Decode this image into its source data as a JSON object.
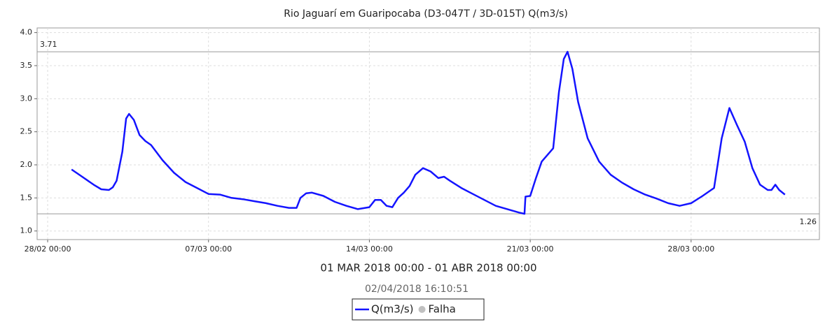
{
  "chart_data": {
    "type": "line",
    "title": "Rio Jaguarí em Guaripocaba (D3-047T / 3D-015T) Q(m3/s)",
    "subtitle": "01 MAR 2018 00:00 - 01 ABR 2018 00:00",
    "timestamp": "02/04/2018 16:10:51",
    "missing_label": "Falha",
    "missing_color": "#c0c0c0",
    "grid": true,
    "max_line": 3.71,
    "min_line": 1.26,
    "xlim": [
      "27/02 13:00",
      "02/04 14:00"
    ],
    "xticks": [
      "28/02 00:00",
      "07/03 00:00",
      "14/03 00:00",
      "21/03 00:00",
      "28/03 00:00"
    ],
    "ylim": [
      0.87,
      4.07
    ],
    "yticks": [
      {
        "value": 1,
        "label": "1.0"
      },
      {
        "value": 1.5,
        "label": "1.5"
      },
      {
        "value": 2,
        "label": "2.0"
      },
      {
        "value": 2.5,
        "label": "2.5"
      },
      {
        "value": 3,
        "label": "3.0"
      },
      {
        "value": 3.5,
        "label": "3.5"
      },
      {
        "value": 4,
        "label": "4.0"
      }
    ],
    "x": [
      "01/03 01:00",
      "01/03 12:00",
      "02/03 00:00",
      "02/03 08:00",
      "02/03 16:00",
      "02/03 20:00",
      "03/03 00:00",
      "03/03 06:00",
      "03/03 10:00",
      "03/03 13:00",
      "03/03 18:00",
      "04/03 00:00",
      "04/03 06:00",
      "04/03 12:00",
      "05/03 00:00",
      "05/03 12:00",
      "06/03 00:00",
      "06/03 12:00",
      "07/03 00:00",
      "07/03 12:00",
      "08/03 00:00",
      "08/03 12:00",
      "09/03 00:00",
      "09/03 12:00",
      "10/03 00:00",
      "10/03 12:00",
      "10/03 20:00",
      "11/03 00:00",
      "11/03 06:00",
      "11/03 12:00",
      "12/03 00:00",
      "12/03 12:00",
      "13/03 00:00",
      "13/03 12:00",
      "14/03 00:00",
      "14/03 06:00",
      "14/03 12:00",
      "14/03 18:00",
      "15/03 00:00",
      "15/03 06:00",
      "15/03 12:00",
      "15/03 18:00",
      "16/03 00:00",
      "16/03 08:00",
      "16/03 16:00",
      "17/03 00:00",
      "17/03 06:00",
      "17/03 12:00",
      "18/03 00:00",
      "18/03 12:00",
      "19/03 00:00",
      "19/03 12:00",
      "20/03 00:00",
      "20/03 12:00",
      "20/03 18:00",
      "20/03 19:00",
      "21/03 00:00",
      "21/03 06:00",
      "21/03 12:00",
      "21/03 18:00",
      "22/03 00:00",
      "22/03 06:00",
      "22/03 11:00",
      "22/03 15:00",
      "22/03 20:00",
      "23/03 02:00",
      "23/03 12:00",
      "24/03 00:00",
      "24/03 12:00",
      "25/03 00:00",
      "25/03 12:00",
      "26/03 00:00",
      "26/03 12:00",
      "27/03 00:00",
      "27/03 12:00",
      "28/03 00:00",
      "28/03 12:00",
      "29/03 00:00",
      "29/03 08:00",
      "29/03 16:00",
      "30/03 00:00",
      "30/03 08:00",
      "30/03 16:00",
      "31/03 00:00",
      "31/03 08:00",
      "31/03 12:00",
      "31/03 16:00",
      "31/03 20:00",
      "01/04 02:00"
    ],
    "series": [
      {
        "name": "Q(m3/s)",
        "color": "#1414ff",
        "values": [
          1.93,
          1.82,
          1.7,
          1.63,
          1.62,
          1.66,
          1.76,
          2.2,
          2.7,
          2.77,
          2.68,
          2.45,
          2.36,
          2.3,
          2.07,
          1.88,
          1.74,
          1.65,
          1.56,
          1.55,
          1.5,
          1.48,
          1.45,
          1.42,
          1.38,
          1.35,
          1.35,
          1.5,
          1.57,
          1.58,
          1.53,
          1.44,
          1.38,
          1.33,
          1.36,
          1.47,
          1.47,
          1.38,
          1.36,
          1.5,
          1.58,
          1.68,
          1.85,
          1.95,
          1.9,
          1.8,
          1.82,
          1.76,
          1.65,
          1.56,
          1.47,
          1.38,
          1.33,
          1.28,
          1.26,
          1.52,
          1.53,
          1.8,
          2.05,
          2.15,
          2.25,
          3.1,
          3.6,
          3.71,
          3.45,
          2.95,
          2.4,
          2.05,
          1.85,
          1.73,
          1.63,
          1.55,
          1.49,
          1.42,
          1.38,
          1.42,
          1.53,
          1.65,
          2.4,
          2.86,
          2.6,
          2.35,
          1.95,
          1.7,
          1.62,
          1.62,
          1.7,
          1.62,
          1.55
        ]
      }
    ]
  }
}
